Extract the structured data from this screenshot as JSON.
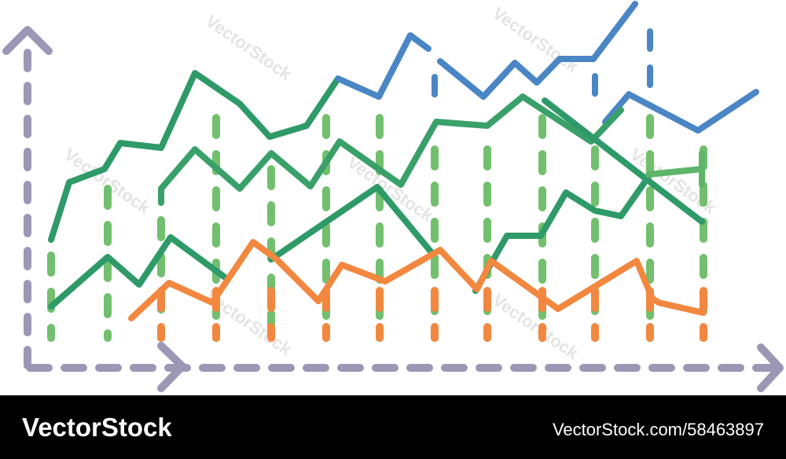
{
  "watermark": "VectorStock",
  "footer": {
    "brand": "VectorStock",
    "id": "VectorStock.com/58463897"
  }
}
